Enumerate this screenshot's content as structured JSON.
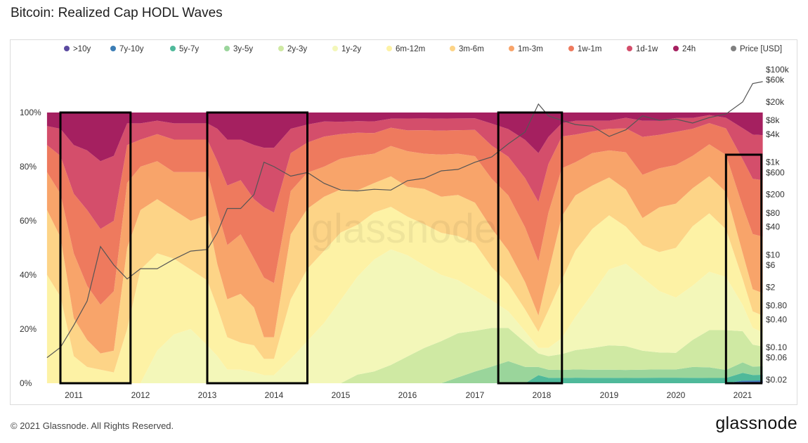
{
  "title": "Bitcoin: Realized Cap HODL Waves",
  "footer": "© 2021 Glassnode. All Rights Reserved.",
  "brand": "glassnode",
  "watermark": "glassnode",
  "legend": [
    {
      "label": ">10y",
      "color": "#5b4aa0"
    },
    {
      "label": "7y-10y",
      "color": "#3b7db5"
    },
    {
      "label": "5y-7y",
      "color": "#4fb99a"
    },
    {
      "label": "3y-5y",
      "color": "#9ad59b"
    },
    {
      "label": "2y-3y",
      "color": "#cfe9a3"
    },
    {
      "label": "1y-2y",
      "color": "#f3f7b9"
    },
    {
      "label": "6m-12m",
      "color": "#fdf2a5"
    },
    {
      "label": "3m-6m",
      "color": "#fdd487"
    },
    {
      "label": "1m-3m",
      "color": "#f8a46a"
    },
    {
      "label": "1w-1m",
      "color": "#ee7a5e"
    },
    {
      "label": "1d-1w",
      "color": "#d44e6b"
    },
    {
      "label": "24h",
      "color": "#a52060"
    },
    {
      "label": "Price [USD]",
      "color": "#808080"
    }
  ],
  "chart_data": {
    "type": "area",
    "stacking": "percent",
    "title": "Bitcoin: Realized Cap HODL Waves",
    "x_ticks": [
      "2011",
      "2012",
      "2013",
      "2014",
      "2015",
      "2016",
      "2017",
      "2018",
      "2019",
      "2020",
      "2021"
    ],
    "y_left_ticks": [
      "0%",
      "20%",
      "40%",
      "60%",
      "80%",
      "100%"
    ],
    "y_left_range": [
      0,
      100
    ],
    "y_right_ticks": [
      "$0.02",
      "$0.06",
      "$0.10",
      "$0.40",
      "$0.80",
      "$2",
      "$6",
      "$10",
      "$40",
      "$80",
      "$200",
      "$600",
      "$1k",
      "$4k",
      "$8k",
      "$20k",
      "$60k",
      "$100k"
    ],
    "y_right_scale": "log",
    "y_right_range": [
      0.02,
      100000
    ],
    "x": [
      2010.6,
      2010.8,
      2011.0,
      2011.2,
      2011.4,
      2011.6,
      2011.8,
      2012.0,
      2012.25,
      2012.5,
      2012.75,
      2013.0,
      2013.15,
      2013.3,
      2013.5,
      2013.7,
      2013.85,
      2014.0,
      2014.25,
      2014.5,
      2014.75,
      2015.0,
      2015.25,
      2015.5,
      2015.75,
      2016.0,
      2016.25,
      2016.5,
      2016.75,
      2017.0,
      2017.25,
      2017.5,
      2017.75,
      2017.95,
      2018.1,
      2018.3,
      2018.5,
      2018.75,
      2019.0,
      2019.25,
      2019.5,
      2019.75,
      2020.0,
      2020.25,
      2020.5,
      2020.75,
      2021.0,
      2021.15,
      2021.3
    ],
    "series": [
      {
        "name": ">10y",
        "values": [
          0,
          0,
          0,
          0,
          0,
          0,
          0,
          0,
          0,
          0,
          0,
          0,
          0,
          0,
          0,
          0,
          0,
          0,
          0,
          0,
          0,
          0,
          0,
          0,
          0,
          0,
          0,
          0,
          0,
          0,
          0,
          0,
          0,
          0,
          0,
          0,
          0,
          0,
          0,
          0,
          0,
          0,
          0,
          0,
          0,
          0,
          0.5,
          0.5,
          0.5
        ]
      },
      {
        "name": "7y-10y",
        "values": [
          0,
          0,
          0,
          0,
          0,
          0,
          0,
          0,
          0,
          0,
          0,
          0,
          0,
          0,
          0,
          0,
          0,
          0,
          0,
          0,
          0,
          0,
          0,
          0,
          0,
          0,
          0,
          0,
          0,
          0,
          0,
          0,
          0,
          0,
          0,
          0,
          0,
          0,
          0,
          0,
          0,
          0,
          0,
          0,
          0,
          0,
          0.5,
          0.5,
          0.5
        ]
      },
      {
        "name": "5y-7y",
        "values": [
          0,
          0,
          0,
          0,
          0,
          0,
          0,
          0,
          0,
          0,
          0,
          0,
          0,
          0,
          0,
          0,
          0,
          0,
          0,
          0,
          0,
          0,
          0,
          0,
          0,
          0,
          0,
          0,
          0,
          0,
          0,
          0,
          0,
          3,
          2,
          2,
          2,
          2,
          2,
          2,
          2,
          2,
          2,
          2,
          2,
          2,
          3,
          2,
          2
        ]
      },
      {
        "name": "3y-5y",
        "values": [
          0,
          0,
          0,
          0,
          0,
          0,
          0,
          0,
          0,
          0,
          0,
          0,
          0,
          0,
          0,
          0,
          0,
          0,
          0,
          0,
          0,
          0,
          0,
          0,
          0,
          0,
          0,
          0,
          2,
          4,
          6,
          8,
          6,
          3,
          3,
          3,
          3,
          3,
          3,
          3,
          3,
          3,
          3,
          4,
          4,
          3,
          4,
          3,
          3
        ]
      },
      {
        "name": "2y-3y",
        "values": [
          0,
          0,
          0,
          0,
          0,
          0,
          0,
          0,
          0,
          0,
          0,
          0,
          0,
          0,
          0,
          0,
          0,
          0,
          0,
          0,
          0,
          0,
          3,
          4,
          6,
          9,
          12,
          14,
          15,
          14,
          14,
          12,
          9,
          5,
          5,
          6,
          7,
          8,
          9,
          9,
          7,
          6,
          6,
          10,
          14,
          15,
          12,
          8,
          7
        ]
      },
      {
        "name": "1y-2y",
        "values": [
          0,
          0,
          0,
          0,
          0,
          0,
          0,
          0,
          12,
          18,
          20,
          14,
          10,
          5,
          5,
          4,
          3,
          3,
          9,
          14,
          20,
          27,
          34,
          38,
          38,
          34,
          28,
          22,
          18,
          14,
          10,
          6,
          4,
          2,
          3,
          6,
          12,
          20,
          28,
          31,
          27,
          22,
          20,
          20,
          22,
          20,
          10,
          6,
          5
        ]
      },
      {
        "name": "6m-12m",
        "values": [
          40,
          32,
          10,
          6,
          5,
          4,
          20,
          42,
          36,
          28,
          22,
          24,
          18,
          12,
          10,
          10,
          6,
          6,
          22,
          24,
          24,
          22,
          18,
          16,
          14,
          13,
          14,
          14,
          15,
          16,
          12,
          10,
          8,
          6,
          14,
          22,
          24,
          24,
          20,
          14,
          12,
          14,
          18,
          22,
          22,
          18,
          10,
          6,
          6
        ]
      },
      {
        "name": "3m-6m",
        "values": [
          24,
          22,
          14,
          10,
          6,
          8,
          30,
          22,
          20,
          18,
          18,
          24,
          16,
          14,
          18,
          14,
          8,
          8,
          24,
          20,
          18,
          14,
          12,
          10,
          10,
          10,
          12,
          12,
          14,
          14,
          14,
          12,
          10,
          6,
          14,
          24,
          20,
          16,
          14,
          14,
          10,
          16,
          16,
          14,
          14,
          14,
          10,
          8,
          8
        ]
      },
      {
        "name": "1m-3m",
        "values": [
          14,
          16,
          24,
          20,
          18,
          22,
          24,
          16,
          14,
          14,
          18,
          16,
          20,
          20,
          22,
          18,
          22,
          20,
          16,
          12,
          10,
          10,
          12,
          10,
          10,
          12,
          12,
          14,
          14,
          16,
          18,
          20,
          20,
          20,
          22,
          18,
          12,
          12,
          10,
          14,
          16,
          14,
          14,
          12,
          12,
          14,
          18,
          20,
          20
        ]
      },
      {
        "name": "1w-1m",
        "values": [
          10,
          14,
          22,
          28,
          28,
          26,
          14,
          10,
          10,
          12,
          12,
          12,
          18,
          22,
          20,
          22,
          26,
          26,
          14,
          10,
          10,
          8,
          8,
          7,
          6,
          7,
          8,
          8,
          8,
          9,
          12,
          14,
          18,
          22,
          18,
          12,
          10,
          8,
          8,
          9,
          14,
          12,
          12,
          10,
          8,
          10,
          18,
          20,
          20
        ]
      },
      {
        "name": "1d-1w",
        "values": [
          7,
          10,
          18,
          22,
          25,
          24,
          8,
          6,
          5,
          6,
          6,
          6,
          12,
          17,
          15,
          20,
          22,
          24,
          9,
          6,
          5,
          4,
          4,
          4,
          3,
          4,
          4,
          4,
          4,
          4,
          8,
          10,
          14,
          18,
          10,
          5,
          5,
          4,
          3,
          4,
          6,
          5,
          5,
          4,
          3,
          4,
          12,
          16,
          16
        ]
      },
      {
        "name": "24h",
        "values": [
          5,
          6,
          12,
          14,
          18,
          16,
          4,
          4,
          3,
          4,
          4,
          4,
          6,
          10,
          10,
          12,
          13,
          13,
          6,
          4,
          3,
          3,
          3,
          3,
          2,
          2,
          2,
          2,
          2,
          2,
          4,
          6,
          10,
          15,
          9,
          4,
          3,
          3,
          3,
          2,
          3,
          3,
          2,
          2,
          1,
          2,
          6,
          8,
          8
        ]
      },
      {
        "name": "Price [USD]",
        "values": [
          0.06,
          0.1,
          0.3,
          1,
          15,
          6,
          3,
          5,
          5,
          8,
          12,
          13,
          30,
          100,
          100,
          200,
          1000,
          800,
          500,
          600,
          350,
          250,
          240,
          260,
          250,
          400,
          450,
          650,
          700,
          1000,
          1300,
          2500,
          4500,
          18000,
          10000,
          8000,
          6500,
          6000,
          3600,
          5000,
          10000,
          8000,
          8500,
          7000,
          9200,
          11000,
          20000,
          50000,
          55000
        ]
      }
    ],
    "highlight_boxes_years": [
      [
        2010.8,
        2011.85
      ],
      [
        2013.0,
        2014.5
      ],
      [
        2017.35,
        2018.3
      ],
      [
        2020.75,
        2021.28
      ]
    ],
    "grid": false,
    "legend_position": "top"
  }
}
